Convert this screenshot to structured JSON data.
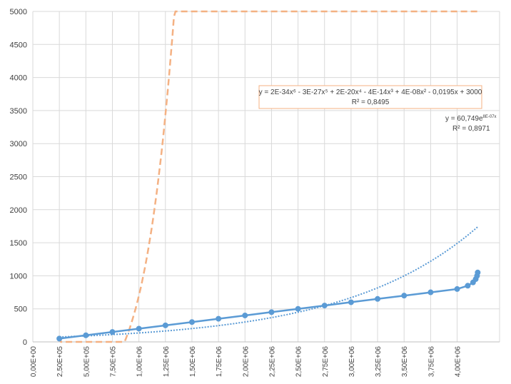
{
  "chart_data": {
    "type": "scatter",
    "xlim": [
      0,
      4400000
    ],
    "ylim": [
      0,
      5000
    ],
    "yticks": [
      "0",
      "500",
      "1000",
      "1500",
      "2000",
      "2500",
      "3000",
      "3500",
      "4000",
      "4500",
      "5000"
    ],
    "xticks": [
      "0,00E+00",
      "2,50E+05",
      "5,00E+05",
      "7,50E+05",
      "1,00E+06",
      "1,25E+06",
      "1,50E+06",
      "1,75E+06",
      "2,00E+06",
      "2,25E+06",
      "2,50E+06",
      "2,75E+06",
      "3,00E+06",
      "3,25E+06",
      "3,50E+06",
      "3,75E+06",
      "4,00E+06"
    ],
    "grid": true,
    "series": [
      {
        "marker": "circle",
        "color": "#5b9bd5",
        "x": [
          250000,
          500000,
          750000,
          1000000,
          1250000,
          1500000,
          1750000,
          2000000,
          2250000,
          2500000,
          2750000,
          3000000,
          3250000,
          3500000,
          3750000,
          4000000,
          4100000,
          4150000,
          4175000,
          4187500,
          4193750
        ],
        "y": [
          50,
          100,
          150,
          200,
          250,
          300,
          350,
          400,
          450,
          500,
          550,
          600,
          650,
          700,
          750,
          800,
          850,
          900,
          950,
          1000,
          1050
        ]
      }
    ],
    "trendlines": [
      {
        "kind": "polynomial",
        "color": "#f4b183",
        "style": "dashed",
        "equation": "y = 2E-34x⁶ - 3E-27x⁵ + 2E-20x⁴ - 4E-14x³ + 4E-08x² - 0,0195x + 3000",
        "r2": "R² = 0,8495"
      },
      {
        "kind": "exponential",
        "color": "#5b9bd5",
        "style": "dotted",
        "equation": "y = 60,749e",
        "exponent": "8E-07x",
        "r2": "R² = 0,8971"
      }
    ]
  }
}
